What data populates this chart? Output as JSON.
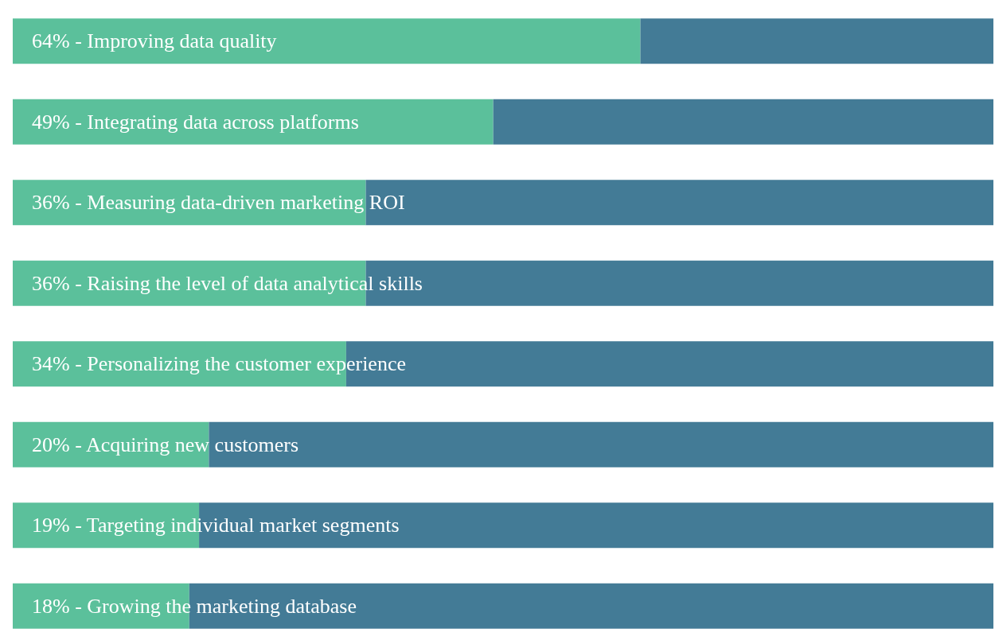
{
  "chart_data": {
    "type": "bar",
    "orientation": "horizontal",
    "stacked": true,
    "xlim": [
      0,
      100
    ],
    "categories": [
      null,
      null,
      null,
      null,
      null,
      null,
      null,
      null
    ],
    "series": [
      {
        "color": "#5bc09b",
        "values": [
          64,
          49,
          36,
          36,
          34,
          20,
          19,
          18
        ],
        "value_labels": [
          "64% - Improving data quality",
          "49% - Integrating data across platforms",
          "36% - Measuring data-driven marketing ROI",
          "36% - Raising the level of data analytical skills",
          "34% - Personalizing the customer experience",
          "20% - Acquiring new customers",
          "19% - Targeting individual market segments",
          "18% - Growing the marketing database"
        ]
      },
      {
        "color": "#437b96",
        "values": [
          36,
          51,
          64,
          64,
          66,
          80,
          81,
          82
        ]
      }
    ]
  }
}
